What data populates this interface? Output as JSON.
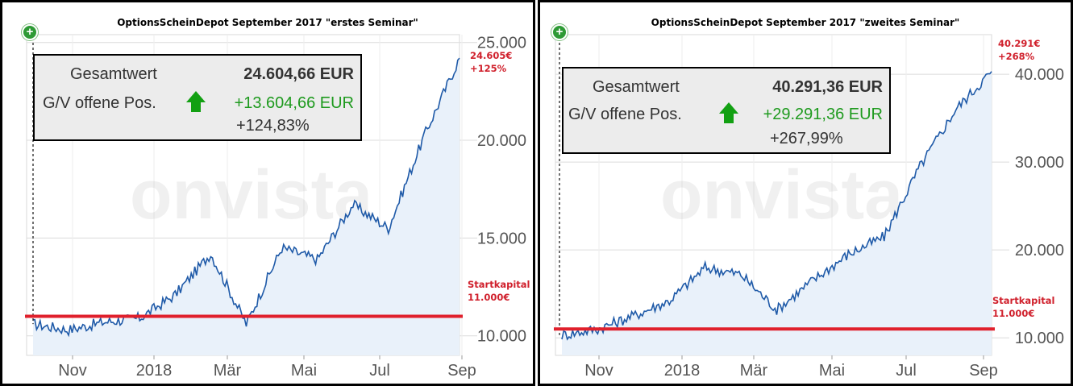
{
  "colors": {
    "line": "#1f5aa8",
    "area": "#e9f1fa",
    "startkapital_line": "#e0202c",
    "annotation": "#d0202c",
    "gain": "#1e9a1e"
  },
  "watermark": "onvista",
  "chart_data": [
    {
      "type": "area",
      "title": "OptionsScheinDepot September 2017 \"erstes Seminar\"",
      "x_tick_labels": [
        "Nov",
        "2018",
        "Mär",
        "Mai",
        "Jul",
        "Sep"
      ],
      "x": [
        "2017-09",
        "2017-10",
        "2017-11",
        "2017-12",
        "2018-01",
        "2018-02",
        "2018-03",
        "2018-04",
        "2018-05",
        "2018-06",
        "2018-07",
        "2018-08",
        "2018-09"
      ],
      "y_ticks": [
        "10.000",
        "15.000",
        "20.000",
        "25.000"
      ],
      "ylim": [
        9000,
        25400
      ],
      "series": [
        {
          "values": [
            10600,
            10300,
            10700,
            10900,
            12100,
            14200,
            10600,
            14500,
            13900,
            16700,
            15500,
            20200,
            24200
          ]
        }
      ],
      "startkapital": 11000,
      "current_value_label": "24.605€",
      "current_pct_label": "+125%",
      "startkapital_label": "Startkapital",
      "startkapital_value_label": "11.000€",
      "info": {
        "gesamtwert_label": "Gesamtwert",
        "gesamtwert_value": "24.604,66 EUR",
        "gv_label": "G/V offene Pos.",
        "gv_value": "+13.604,66 EUR",
        "gv_pct": "+124,83%"
      }
    },
    {
      "type": "area",
      "title": "OptionsScheinDepot September 2017 \"zweites Seminar\"",
      "x_tick_labels": [
        "Nov",
        "2018",
        "Mär",
        "Mai",
        "Jul",
        "Sep"
      ],
      "x": [
        "2017-09",
        "2017-10",
        "2017-11",
        "2017-12",
        "2018-01",
        "2018-02",
        "2018-03",
        "2018-04",
        "2018-05",
        "2018-06",
        "2018-07",
        "2018-08",
        "2018-09"
      ],
      "y_ticks": [
        "10.000",
        "20.000",
        "30.000",
        "40.000"
      ],
      "ylim": [
        8000,
        44500
      ],
      "series": [
        {
          "values": [
            10300,
            11000,
            12500,
            14200,
            18000,
            17200,
            13200,
            16500,
            19500,
            21500,
            29500,
            36000,
            40300
          ]
        }
      ],
      "startkapital": 11000,
      "current_value_label": "40.291€",
      "current_pct_label": "+268%",
      "startkapital_label": "Startkapital",
      "startkapital_value_label": "11.000€",
      "info": {
        "gesamtwert_label": "Gesamtwert",
        "gesamtwert_value": "40.291,36 EUR",
        "gv_label": "G/V offene Pos.",
        "gv_value": "+29.291,36 EUR",
        "gv_pct": "+267,99%"
      }
    }
  ]
}
